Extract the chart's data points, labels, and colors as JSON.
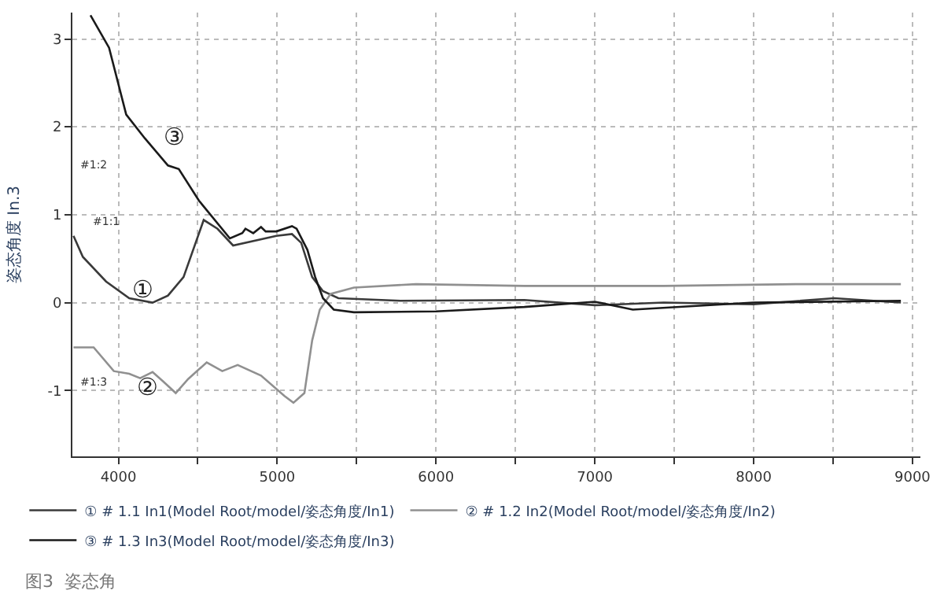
{
  "chart_data": {
    "type": "line",
    "ylabel": "姿态角度 In.3",
    "xlim": [
      3710,
      9050
    ],
    "ylim": [
      -1.75,
      3.3
    ],
    "xticks": [
      4000,
      {
        "value": 4500,
        "label": null
      },
      5000,
      {
        "value": 5500,
        "label": null
      },
      6000,
      {
        "value": 6500,
        "label": null
      },
      7000,
      {
        "value": 7500,
        "label": null
      },
      8000,
      {
        "value": 8500,
        "label": null
      },
      9000
    ],
    "yticks": [
      -1,
      0,
      1,
      2,
      3
    ],
    "grid": true,
    "legend": "bottom",
    "line_style": "solid",
    "marker": "none",
    "series": [
      {
        "name": "① # 1.1 In1(Model Root/model/姿态角度/In1)",
        "color": "#3a3a3a",
        "x": [
          3717,
          3776,
          3922,
          4068,
          4215,
          4312,
          4410,
          4537,
          4624,
          4722,
          4995,
          5093,
          5151,
          5220,
          5288,
          5385,
          5776,
          6556,
          7000,
          7434,
          8000,
          8507,
          8927
        ],
        "values": [
          0.76,
          0.52,
          0.24,
          0.05,
          0.0,
          0.08,
          0.29,
          0.94,
          0.84,
          0.65,
          0.76,
          0.78,
          0.68,
          0.29,
          0.13,
          0.05,
          0.02,
          0.03,
          -0.03,
          0.0,
          -0.02,
          0.05,
          0.0
        ]
      },
      {
        "name": "② # 1.2 In2(Model Root/model/姿态角度/In2)",
        "color": "#909090",
        "x": [
          3717,
          3844,
          3971,
          4068,
          4137,
          4215,
          4283,
          4361,
          4439,
          4556,
          4654,
          4751,
          4898,
          5044,
          5102,
          5171,
          5220,
          5268,
          5337,
          5483,
          5873,
          6556,
          7434,
          8263,
          8927
        ],
        "values": [
          -0.51,
          -0.51,
          -0.78,
          -0.81,
          -0.86,
          -0.79,
          -0.9,
          -1.03,
          -0.87,
          -0.68,
          -0.78,
          -0.71,
          -0.83,
          -1.06,
          -1.14,
          -1.03,
          -0.43,
          -0.08,
          0.1,
          0.17,
          0.21,
          0.19,
          0.19,
          0.21,
          0.21
        ]
      },
      {
        "name": "③ # 1.3 In3(Model Root/model/姿态角度/In3)",
        "color": "#1a1a1a",
        "x": [
          3824,
          3941,
          4049,
          4166,
          4312,
          4380,
          4507,
          4702,
          4780,
          4800,
          4849,
          4898,
          4927,
          4995,
          5093,
          5122,
          5190,
          5239,
          5288,
          5356,
          5483,
          6000,
          6556,
          7000,
          7239,
          8000,
          8927
        ],
        "values": [
          3.27,
          2.9,
          2.14,
          1.87,
          1.56,
          1.52,
          1.16,
          0.73,
          0.79,
          0.84,
          0.79,
          0.86,
          0.81,
          0.81,
          0.87,
          0.84,
          0.6,
          0.29,
          0.05,
          -0.08,
          -0.11,
          -0.1,
          -0.05,
          0.01,
          -0.08,
          0.0,
          0.02
        ]
      }
    ],
    "annotations": [
      "①",
      "②",
      "③",
      "#1:2",
      "#1:1",
      "#1:3",
      "图3  姿态角"
    ]
  }
}
